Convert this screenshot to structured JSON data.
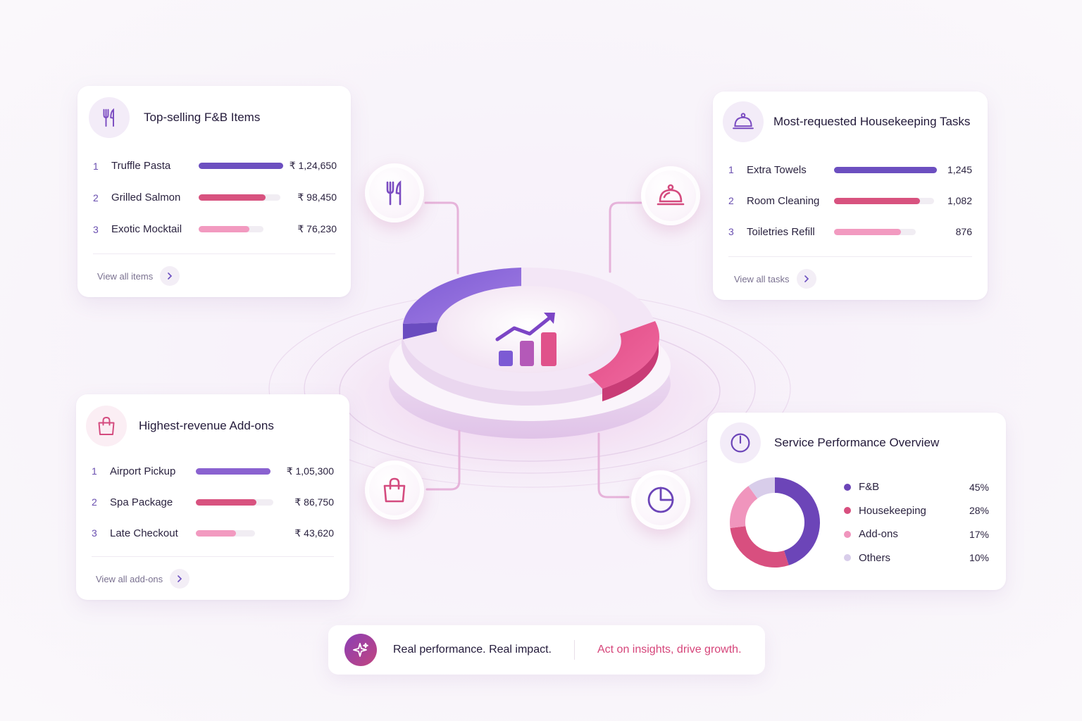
{
  "fnb": {
    "title": "Top-selling F&B Items",
    "icon": "fork-knife-icon",
    "items": [
      {
        "rank": "1",
        "name": "Truffle Pasta",
        "value": "₹ 1,24,650",
        "fill": 1.0,
        "color": "#6c4fc0"
      },
      {
        "rank": "2",
        "name": "Grilled Salmon",
        "value": "₹ 98,450",
        "fill": 0.82,
        "color": "#d8527f"
      },
      {
        "rank": "3",
        "name": "Exotic Mocktail",
        "value": "₹ 76,230",
        "fill": 0.78,
        "color": "#f29ac0"
      }
    ],
    "link": "View all items"
  },
  "housekeeping": {
    "title": "Most-requested Housekeeping Tasks",
    "icon": "service-bell-icon",
    "items": [
      {
        "rank": "1",
        "name": "Extra Towels",
        "value": "1,245",
        "fill": 1.0,
        "color": "#6c4fc0"
      },
      {
        "rank": "2",
        "name": "Room Cleaning",
        "value": "1,082",
        "fill": 0.86,
        "color": "#d8527f"
      },
      {
        "rank": "3",
        "name": "Toiletries Refill",
        "value": "876",
        "fill": 0.82,
        "color": "#f29ac0"
      }
    ],
    "link": "View all tasks"
  },
  "addons": {
    "title": "Highest-revenue Add-ons",
    "icon": "shopping-bag-icon",
    "items": [
      {
        "rank": "1",
        "name": "Airport Pickup",
        "value": "₹ 1,05,300",
        "fill": 1.0,
        "color": "#8a62d0"
      },
      {
        "rank": "2",
        "name": "Spa Package",
        "value": "₹ 86,750",
        "fill": 0.78,
        "color": "#d8527f"
      },
      {
        "rank": "3",
        "name": "Late Checkout",
        "value": "₹ 43,620",
        "fill": 0.68,
        "color": "#f29ac0"
      }
    ],
    "link": "View all add-ons"
  },
  "overview": {
    "title": "Service Performance Overview",
    "icon": "clock-icon",
    "segments": [
      {
        "label": "F&B",
        "pct": "45%",
        "value": 45,
        "color": "#6c45b8"
      },
      {
        "label": "Housekeeping",
        "pct": "28%",
        "value": 28,
        "color": "#d84f7f"
      },
      {
        "label": "Add-ons",
        "pct": "17%",
        "value": 17,
        "color": "#f095bd"
      },
      {
        "label": "Others",
        "pct": "10%",
        "value": 10,
        "color": "#d8cdea"
      }
    ]
  },
  "banner": {
    "left": "Real performance. Real impact.",
    "right": "Act on insights, drive growth."
  },
  "colors": {
    "purple": "#6c4fc0",
    "pink": "#d8527f",
    "lightpink": "#f29ac0",
    "accent_text": "#d6457a"
  }
}
